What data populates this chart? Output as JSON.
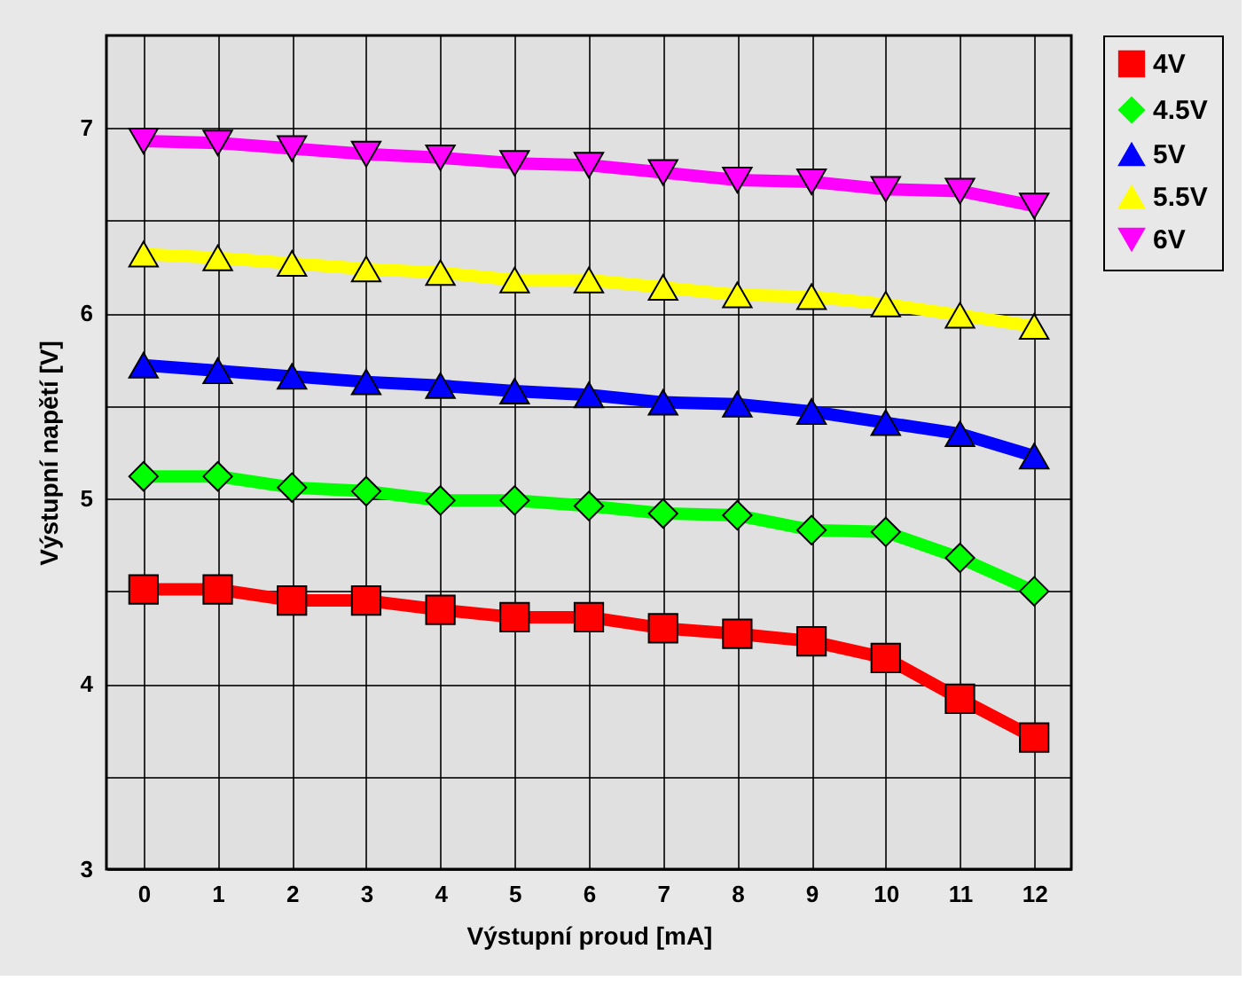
{
  "chart_data": {
    "type": "line",
    "xlabel": "Výstupní proud [mA]",
    "ylabel": "Výstupní napětí [V]",
    "x": [
      0,
      1,
      2,
      3,
      4,
      5,
      6,
      7,
      8,
      9,
      10,
      11,
      12
    ],
    "xlim": [
      -0.5,
      12.5
    ],
    "xticks": [
      0,
      1,
      2,
      3,
      4,
      5,
      6,
      7,
      8,
      9,
      10,
      11,
      12
    ],
    "ylim": [
      3,
      7.5
    ],
    "yticks": [
      3,
      {
        "value": 3.5,
        "label": null
      },
      4,
      {
        "value": 4.5,
        "label": null
      },
      5,
      {
        "value": 5.5,
        "label": null
      },
      6,
      {
        "value": 6.5,
        "label": null
      },
      7
    ],
    "grid": true,
    "legend": "right",
    "line_style": "solid",
    "series": [
      {
        "name": "4V",
        "color": "#ff0000",
        "marker": "square",
        "values": [
          4.51,
          4.51,
          4.45,
          4.45,
          4.4,
          4.36,
          4.36,
          4.3,
          4.27,
          4.23,
          4.14,
          3.92,
          3.71
        ]
      },
      {
        "name": "4.5V",
        "color": "#00ff00",
        "marker": "diamond",
        "values": [
          5.12,
          5.12,
          5.06,
          5.04,
          4.99,
          4.99,
          4.96,
          4.92,
          4.91,
          4.83,
          4.82,
          4.68,
          4.5
        ]
      },
      {
        "name": "5V",
        "color": "#0000ff",
        "marker": "triangle",
        "values": [
          5.72,
          5.69,
          5.66,
          5.63,
          5.61,
          5.58,
          5.56,
          5.52,
          5.51,
          5.47,
          5.41,
          5.35,
          5.23
        ]
      },
      {
        "name": "5.5V",
        "color": "#ffff00",
        "marker": "triangle",
        "values": [
          6.32,
          6.3,
          6.27,
          6.24,
          6.22,
          6.18,
          6.18,
          6.14,
          6.1,
          6.09,
          6.05,
          5.99,
          5.93
        ]
      },
      {
        "name": "6V",
        "color": "#ff00ff",
        "marker": "triangle-down",
        "values": [
          6.93,
          6.92,
          6.89,
          6.86,
          6.84,
          6.81,
          6.8,
          6.76,
          6.72,
          6.71,
          6.67,
          6.66,
          6.58
        ]
      }
    ]
  }
}
